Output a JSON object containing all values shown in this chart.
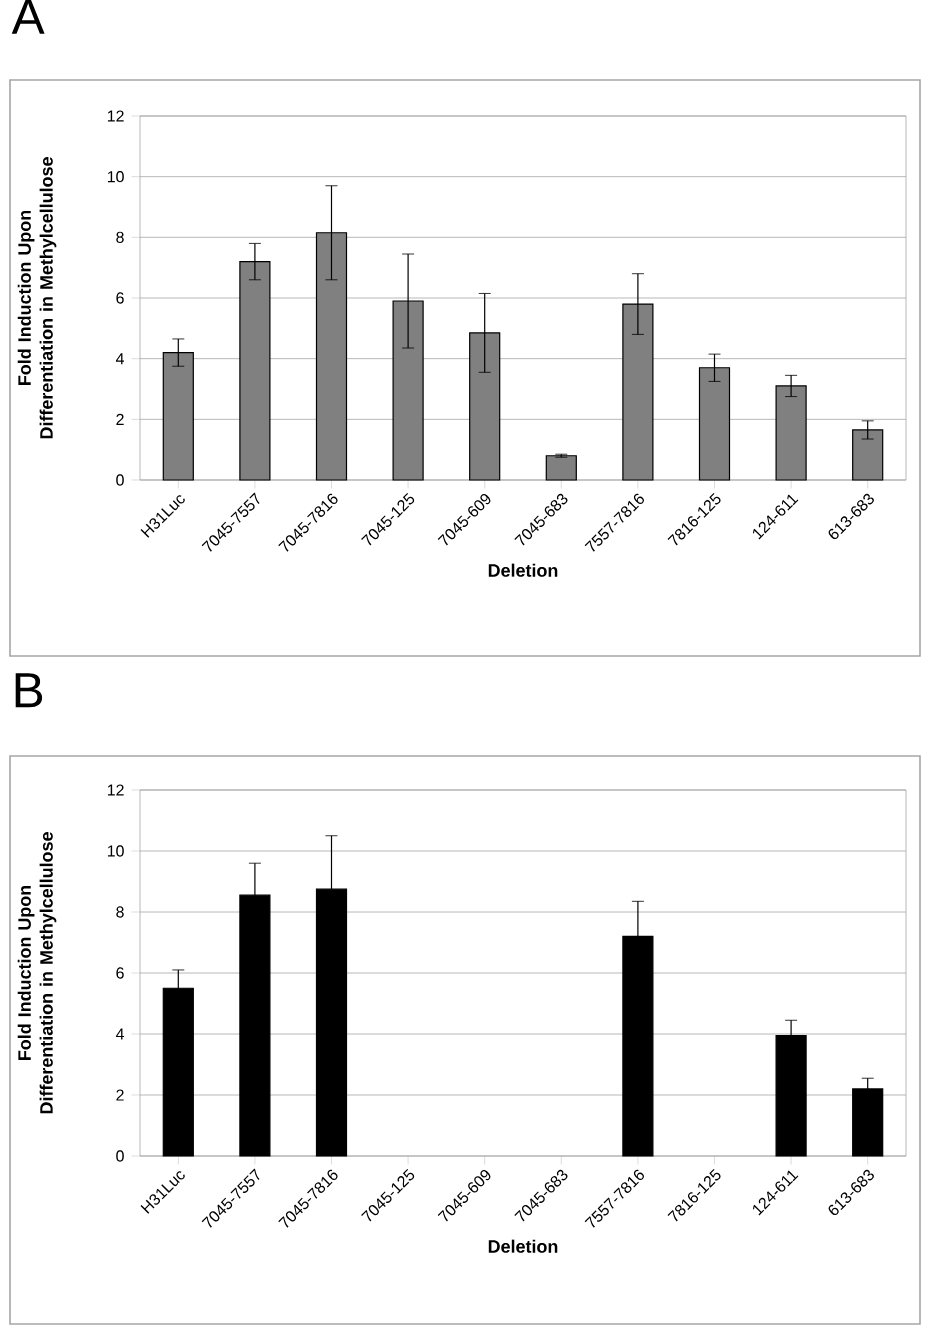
{
  "chart_data": [
    {
      "type": "bar",
      "title": "A",
      "xlabel": "Deletion",
      "ylabel": "Fold Induction Upon Differentiation in Methylcellulose",
      "categories": [
        "H31Luc",
        "7045-7557",
        "7045-7816",
        "7045-125",
        "7045-609",
        "7045-683",
        "7557-7816",
        "7816-125",
        "124-611",
        "613-683"
      ],
      "values": [
        4.2,
        7.2,
        8.15,
        5.9,
        4.85,
        0.8,
        5.8,
        3.7,
        3.1,
        1.65
      ],
      "errors": [
        0.45,
        0.6,
        1.55,
        1.55,
        1.3,
        0.05,
        1.0,
        0.45,
        0.35,
        0.3
      ],
      "color": "#808080",
      "ylim": [
        0,
        12
      ],
      "yticks": [
        0,
        2,
        4,
        6,
        8,
        10,
        12
      ],
      "grid": "y"
    },
    {
      "type": "bar",
      "title": "B",
      "xlabel": "Deletion",
      "ylabel": "Fold Induction Upon Differentiation in Methylcellulose",
      "categories": [
        "H31Luc",
        "7045-7557",
        "7045-7816",
        "7045-125",
        "7045-609",
        "7045-683",
        "7557-7816",
        "7816-125",
        "124-611",
        "613-683"
      ],
      "values": [
        5.5,
        8.55,
        8.75,
        null,
        null,
        null,
        7.2,
        null,
        3.95,
        2.2
      ],
      "errors": [
        0.6,
        1.05,
        1.75,
        null,
        null,
        null,
        1.15,
        null,
        0.5,
        0.35
      ],
      "color": "#000000",
      "ylim": [
        0,
        12
      ],
      "yticks": [
        0,
        2,
        4,
        6,
        8,
        10,
        12
      ],
      "grid": "y"
    }
  ]
}
